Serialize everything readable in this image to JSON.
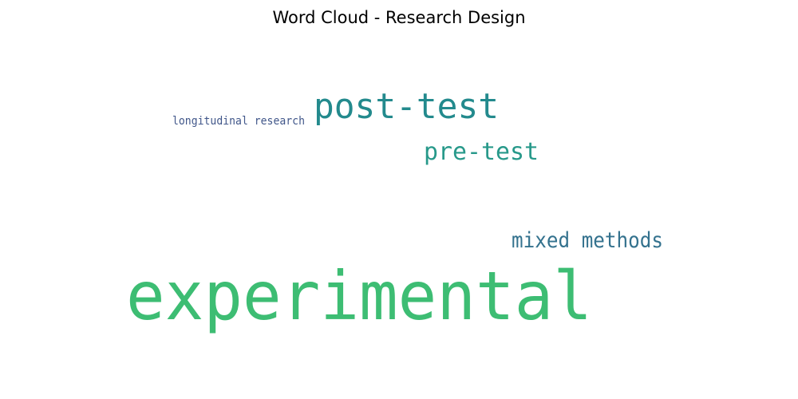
{
  "chart_data": {
    "type": "wordcloud",
    "title": "Word Cloud - Research Design",
    "words": [
      {
        "text": "experimental",
        "weight": 1.0,
        "color": "#3dbd73"
      },
      {
        "text": "post-test",
        "weight": 0.52,
        "color": "#238a8d"
      },
      {
        "text": "mixed methods",
        "weight": 0.32,
        "color": "#34728e"
      },
      {
        "text": "pre-test",
        "weight": 0.36,
        "color": "#27998a"
      },
      {
        "text": "longitudinal research",
        "weight": 0.17,
        "color": "#41578a"
      }
    ]
  }
}
